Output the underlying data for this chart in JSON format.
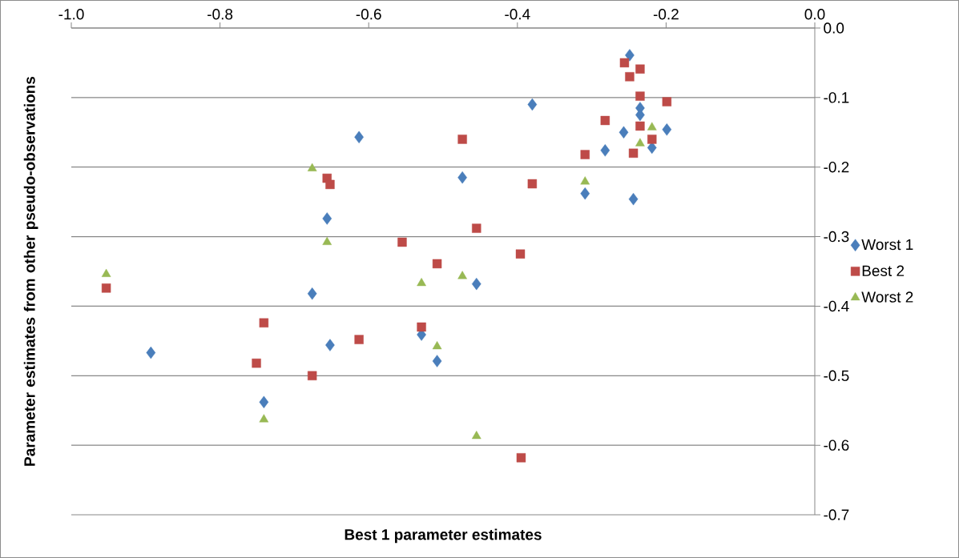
{
  "chart_data": {
    "type": "scatter",
    "xlabel": "Best 1  parameter estimates",
    "ylabel": "Parameter estimates from other pseudo-observations",
    "xlim": [
      -1.0,
      0.0
    ],
    "ylim": [
      -0.7,
      0.0
    ],
    "xticks": [
      {
        "value": -1.0,
        "label": "-1.0"
      },
      -0.8,
      -0.6,
      -0.4,
      -0.2,
      {
        "value": 0.0,
        "label": "0.0"
      }
    ],
    "yticks": [
      {
        "value": -0.7,
        "label": "-0.7"
      },
      -0.6,
      -0.5,
      -0.4,
      -0.3,
      -0.2,
      -0.1,
      {
        "value": 0.0,
        "label": "0.0"
      }
    ],
    "grid": "y",
    "legend": "right",
    "series": [
      {
        "name": "Worst 1",
        "color": "#4a7ebb",
        "marker": "diamond",
        "x": [
          -0.893,
          -0.741,
          -0.676,
          -0.656,
          -0.652,
          -0.613,
          -0.529,
          -0.508,
          -0.474,
          -0.455,
          -0.38,
          -0.309,
          -0.282,
          -0.257,
          -0.249,
          -0.244,
          -0.235,
          -0.235,
          -0.219,
          -0.199
        ],
        "values": [
          -0.467,
          -0.538,
          -0.382,
          -0.274,
          -0.456,
          -0.157,
          -0.441,
          -0.479,
          -0.215,
          -0.368,
          -0.11,
          -0.238,
          -0.176,
          -0.15,
          -0.039,
          -0.246,
          -0.115,
          -0.125,
          -0.172,
          -0.146
        ]
      },
      {
        "name": "Best 2",
        "color": "#be4b48",
        "marker": "square",
        "x": [
          -0.953,
          -0.751,
          -0.741,
          -0.676,
          -0.656,
          -0.652,
          -0.613,
          -0.555,
          -0.529,
          -0.508,
          -0.474,
          -0.455,
          -0.396,
          -0.395,
          -0.38,
          -0.309,
          -0.282,
          -0.256,
          -0.249,
          -0.244,
          -0.235,
          -0.235,
          -0.235,
          -0.219,
          -0.199
        ],
        "values": [
          -0.374,
          -0.482,
          -0.424,
          -0.5,
          -0.216,
          -0.225,
          -0.448,
          -0.308,
          -0.43,
          -0.339,
          -0.16,
          -0.288,
          -0.325,
          -0.618,
          -0.224,
          -0.182,
          -0.133,
          -0.05,
          -0.07,
          -0.18,
          -0.059,
          -0.098,
          -0.141,
          -0.16,
          -0.106
        ]
      },
      {
        "name": "Worst 2",
        "color": "#98b954",
        "marker": "triangle",
        "x": [
          -0.953,
          -0.741,
          -0.676,
          -0.656,
          -0.529,
          -0.508,
          -0.474,
          -0.455,
          -0.309,
          -0.235,
          -0.219
        ],
        "values": [
          -0.354,
          -0.563,
          -0.202,
          -0.308,
          -0.367,
          -0.458,
          -0.357,
          -0.587,
          -0.221,
          -0.166,
          -0.143
        ]
      }
    ]
  }
}
